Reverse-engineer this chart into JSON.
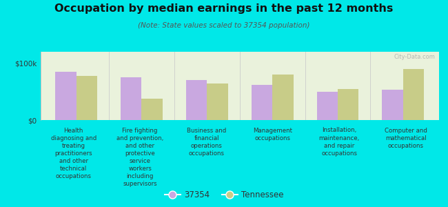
{
  "title": "Occupation by median earnings in the past 12 months",
  "subtitle": "(Note: State values scaled to 37354 population)",
  "background_color": "#00e8e8",
  "plot_bg_color": "#eaf2dc",
  "categories": [
    "Health\ndiagnosing and\ntreating\npractitioners\nand other\ntechnical\noccupations",
    "Fire fighting\nand prevention,\nand other\nprotective\nservice\nworkers\nincluding\nsupervisors",
    "Business and\nfinancial\noperations\noccupations",
    "Management\noccupations",
    "Installation,\nmaintenance,\nand repair\noccupations",
    "Computer and\nmathematical\noccupations"
  ],
  "values_37354": [
    85000,
    75000,
    70000,
    62000,
    50000,
    53000
  ],
  "values_tennessee": [
    78000,
    38000,
    64000,
    80000,
    54000,
    90000
  ],
  "color_37354": "#c9a8e0",
  "color_tennessee": "#c8cc88",
  "ylabel_ticks": [
    "$0",
    "$100k"
  ],
  "ytick_vals": [
    0,
    100000
  ],
  "ylim": [
    0,
    120000
  ],
  "legend_37354": "37354",
  "legend_tennessee": "Tennessee",
  "watermark": "City-Data.com"
}
